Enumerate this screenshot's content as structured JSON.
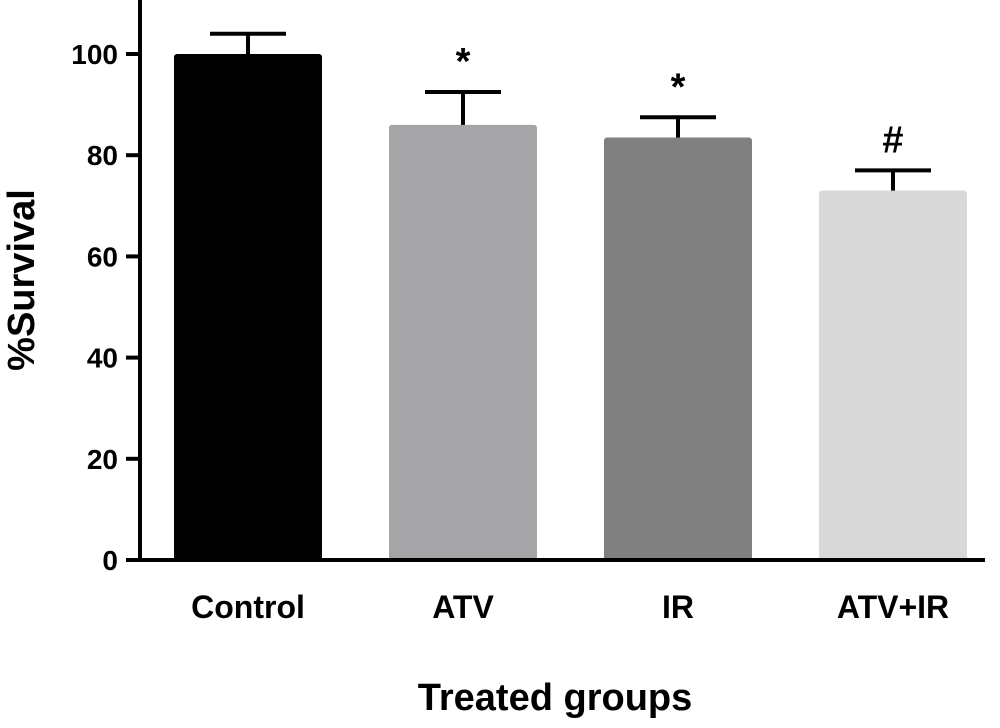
{
  "chart_data": {
    "type": "bar",
    "categories": [
      "Control",
      "ATV",
      "IR",
      "ATV+IR"
    ],
    "values": [
      100,
      86,
      83.5,
      73
    ],
    "error": [
      4,
      6.5,
      4,
      4
    ],
    "annotations": [
      "",
      "*",
      "*",
      "#"
    ],
    "colors": [
      "#000000",
      "#a5a5a8",
      "#808080",
      "#d8d8d8"
    ],
    "xlabel": "Treated groups",
    "ylabel": "%Survival",
    "ylim": [
      0,
      110
    ],
    "yticks": [
      0,
      20,
      40,
      60,
      80,
      100
    ],
    "grid": false
  }
}
